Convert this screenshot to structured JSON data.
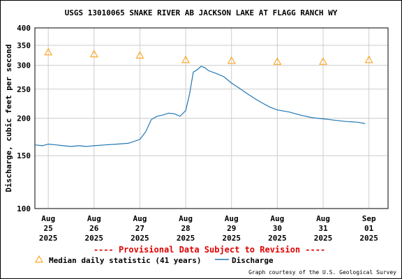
{
  "chart_data": {
    "type": "line",
    "title": "USGS 13010065 SNAKE RIVER AB JACKSON LAKE AT FLAGG RANCH WY",
    "xlabel": "",
    "ylabel": "Discharge, cubic feet per second",
    "y_scale": "log",
    "ylim": [
      100,
      400
    ],
    "y_ticks": [
      "400",
      "350",
      "300",
      "250",
      "200",
      "150",
      "100"
    ],
    "x_range": [
      "2025-08-24T17:00",
      "2025-09-01T10:00"
    ],
    "x_ticks": [
      {
        "date": "2025-08-25T00:00",
        "lines": [
          "Aug",
          "25",
          "2025"
        ]
      },
      {
        "date": "2025-08-26T00:00",
        "lines": [
          "Aug",
          "26",
          "2025"
        ]
      },
      {
        "date": "2025-08-27T00:00",
        "lines": [
          "Aug",
          "27",
          "2025"
        ]
      },
      {
        "date": "2025-08-28T00:00",
        "lines": [
          "Aug",
          "28",
          "2025"
        ]
      },
      {
        "date": "2025-08-29T00:00",
        "lines": [
          "Aug",
          "29",
          "2025"
        ]
      },
      {
        "date": "2025-08-30T00:00",
        "lines": [
          "Aug",
          "30",
          "2025"
        ]
      },
      {
        "date": "2025-08-31T00:00",
        "lines": [
          "Aug",
          "31",
          "2025"
        ]
      },
      {
        "date": "2025-09-01T00:00",
        "lines": [
          "Sep",
          "01",
          "2025"
        ]
      }
    ],
    "grid": true,
    "series": [
      {
        "name": "Median daily statistic (41 years)",
        "color": "#ff9900",
        "marker": "triangle",
        "points": [
          {
            "x": "2025-08-25T00:00",
            "y": 332
          },
          {
            "x": "2025-08-26T00:00",
            "y": 327
          },
          {
            "x": "2025-08-27T00:00",
            "y": 324
          },
          {
            "x": "2025-08-28T00:00",
            "y": 313
          },
          {
            "x": "2025-08-29T00:00",
            "y": 311
          },
          {
            "x": "2025-08-30T00:00",
            "y": 309
          },
          {
            "x": "2025-08-31T00:00",
            "y": 309
          },
          {
            "x": "2025-09-01T00:00",
            "y": 313
          }
        ]
      },
      {
        "name": "Discharge",
        "color": "#1f77b4",
        "points": [
          {
            "x": "2025-08-24T17:00",
            "y": 163
          },
          {
            "x": "2025-08-24T21:00",
            "y": 162
          },
          {
            "x": "2025-08-25T00:00",
            "y": 164
          },
          {
            "x": "2025-08-25T04:00",
            "y": 163
          },
          {
            "x": "2025-08-25T08:00",
            "y": 162
          },
          {
            "x": "2025-08-25T12:00",
            "y": 161
          },
          {
            "x": "2025-08-25T16:00",
            "y": 162
          },
          {
            "x": "2025-08-25T20:00",
            "y": 161
          },
          {
            "x": "2025-08-26T00:00",
            "y": 162
          },
          {
            "x": "2025-08-26T06:00",
            "y": 163
          },
          {
            "x": "2025-08-26T12:00",
            "y": 164
          },
          {
            "x": "2025-08-26T18:00",
            "y": 165
          },
          {
            "x": "2025-08-27T00:00",
            "y": 170
          },
          {
            "x": "2025-08-27T03:00",
            "y": 180
          },
          {
            "x": "2025-08-27T06:00",
            "y": 198
          },
          {
            "x": "2025-08-27T09:00",
            "y": 203
          },
          {
            "x": "2025-08-27T12:00",
            "y": 205
          },
          {
            "x": "2025-08-27T15:00",
            "y": 208
          },
          {
            "x": "2025-08-27T18:00",
            "y": 207
          },
          {
            "x": "2025-08-27T21:00",
            "y": 203
          },
          {
            "x": "2025-08-28T00:00",
            "y": 212
          },
          {
            "x": "2025-08-28T02:00",
            "y": 240
          },
          {
            "x": "2025-08-28T04:00",
            "y": 285
          },
          {
            "x": "2025-08-28T06:00",
            "y": 290
          },
          {
            "x": "2025-08-28T08:00",
            "y": 298
          },
          {
            "x": "2025-08-28T10:00",
            "y": 295
          },
          {
            "x": "2025-08-28T12:00",
            "y": 288
          },
          {
            "x": "2025-08-28T16:00",
            "y": 282
          },
          {
            "x": "2025-08-28T20:00",
            "y": 275
          },
          {
            "x": "2025-08-29T00:00",
            "y": 262
          },
          {
            "x": "2025-08-29T04:00",
            "y": 252
          },
          {
            "x": "2025-08-29T08:00",
            "y": 242
          },
          {
            "x": "2025-08-29T12:00",
            "y": 233
          },
          {
            "x": "2025-08-29T16:00",
            "y": 225
          },
          {
            "x": "2025-08-29T20:00",
            "y": 218
          },
          {
            "x": "2025-08-30T00:00",
            "y": 213
          },
          {
            "x": "2025-08-30T06:00",
            "y": 210
          },
          {
            "x": "2025-08-30T12:00",
            "y": 205
          },
          {
            "x": "2025-08-30T18:00",
            "y": 201
          },
          {
            "x": "2025-08-31T00:00",
            "y": 199
          },
          {
            "x": "2025-08-31T06:00",
            "y": 197
          },
          {
            "x": "2025-08-31T12:00",
            "y": 195
          },
          {
            "x": "2025-08-31T18:00",
            "y": 194
          },
          {
            "x": "2025-08-31T22:00",
            "y": 192
          }
        ]
      }
    ],
    "legend": "bottom"
  },
  "provisional_notice": "---- Provisional Data Subject to Revision ----",
  "legend": {
    "median_label": "Median daily statistic (41 years)",
    "discharge_label": "Discharge"
  },
  "credit": "Graph courtesy of the U.S. Geological Survey",
  "colors": {
    "grid": "#cccccc",
    "discharge": "#1f77b4",
    "median": "#ff9900",
    "notice": "#e00000"
  }
}
